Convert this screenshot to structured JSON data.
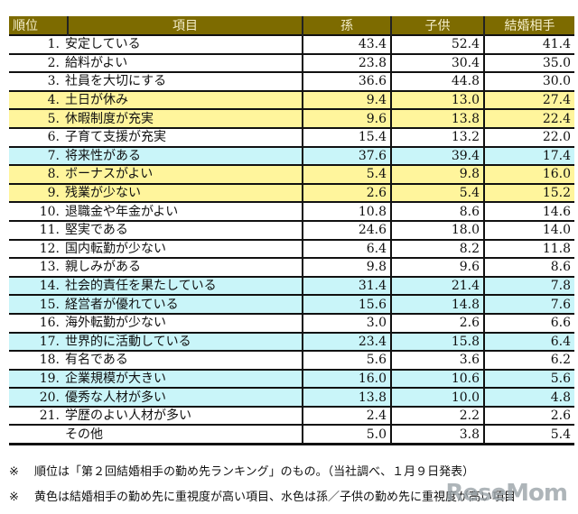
{
  "table": {
    "headers": [
      "順位",
      "項目",
      "孫",
      "子供",
      "結婚相手"
    ],
    "rows": [
      {
        "rank": "1.",
        "item": "安定している",
        "grandchild": "43.4",
        "child": "52.4",
        "spouse": "41.4",
        "highlight": "none"
      },
      {
        "rank": "2.",
        "item": "給料がよい",
        "grandchild": "23.8",
        "child": "30.4",
        "spouse": "35.0",
        "highlight": "none"
      },
      {
        "rank": "3.",
        "item": "社員を大切にする",
        "grandchild": "36.6",
        "child": "44.8",
        "spouse": "30.0",
        "highlight": "none"
      },
      {
        "rank": "4.",
        "item": "土日が休み",
        "grandchild": "9.4",
        "child": "13.0",
        "spouse": "27.4",
        "highlight": "yellow"
      },
      {
        "rank": "5.",
        "item": "休暇制度が充実",
        "grandchild": "9.6",
        "child": "13.8",
        "spouse": "22.4",
        "highlight": "yellow"
      },
      {
        "rank": "6.",
        "item": "子育て支援が充実",
        "grandchild": "15.4",
        "child": "13.2",
        "spouse": "22.0",
        "highlight": "none"
      },
      {
        "rank": "7.",
        "item": "将来性がある",
        "grandchild": "37.6",
        "child": "39.4",
        "spouse": "17.4",
        "highlight": "cyan"
      },
      {
        "rank": "8.",
        "item": "ボーナスがよい",
        "grandchild": "5.4",
        "child": "9.8",
        "spouse": "16.0",
        "highlight": "yellow"
      },
      {
        "rank": "9.",
        "item": "残業が少ない",
        "grandchild": "2.6",
        "child": "5.4",
        "spouse": "15.2",
        "highlight": "yellow"
      },
      {
        "rank": "10.",
        "item": "退職金や年金がよい",
        "grandchild": "10.8",
        "child": "8.6",
        "spouse": "14.6",
        "highlight": "none"
      },
      {
        "rank": "11.",
        "item": "堅実である",
        "grandchild": "24.6",
        "child": "18.0",
        "spouse": "14.0",
        "highlight": "none"
      },
      {
        "rank": "12.",
        "item": "国内転勤が少ない",
        "grandchild": "6.4",
        "child": "8.2",
        "spouse": "11.8",
        "highlight": "none"
      },
      {
        "rank": "13.",
        "item": "親しみがある",
        "grandchild": "9.8",
        "child": "9.6",
        "spouse": "8.6",
        "highlight": "none"
      },
      {
        "rank": "14.",
        "item": "社会的責任を果たしている",
        "grandchild": "31.4",
        "child": "21.4",
        "spouse": "7.8",
        "highlight": "cyan"
      },
      {
        "rank": "15.",
        "item": "経営者が優れている",
        "grandchild": "15.6",
        "child": "14.8",
        "spouse": "7.6",
        "highlight": "cyan"
      },
      {
        "rank": "16.",
        "item": "海外転勤が少ない",
        "grandchild": "3.0",
        "child": "2.6",
        "spouse": "6.6",
        "highlight": "none"
      },
      {
        "rank": "17.",
        "item": "世界的に活動している",
        "grandchild": "23.4",
        "child": "15.8",
        "spouse": "6.4",
        "highlight": "cyan"
      },
      {
        "rank": "18.",
        "item": "有名である",
        "grandchild": "5.6",
        "child": "3.6",
        "spouse": "6.2",
        "highlight": "none"
      },
      {
        "rank": "19.",
        "item": "企業規模が大きい",
        "grandchild": "16.0",
        "child": "10.6",
        "spouse": "5.6",
        "highlight": "cyan"
      },
      {
        "rank": "20.",
        "item": "優秀な人材が多い",
        "grandchild": "13.8",
        "child": "10.0",
        "spouse": "4.8",
        "highlight": "cyan"
      },
      {
        "rank": "21.",
        "item": "学歴のよい人材が多い",
        "grandchild": "2.4",
        "child": "2.2",
        "spouse": "2.6",
        "highlight": "none"
      },
      {
        "rank": "",
        "item": "その他",
        "grandchild": "5.0",
        "child": "3.8",
        "spouse": "5.4",
        "highlight": "none"
      }
    ]
  },
  "notes": [
    {
      "mark": "※",
      "text": "順位は「第２回結婚相手の勤め先ランキング」のもの。（当社調べ、１月９日発表）"
    },
    {
      "mark": "※",
      "text": "黄色は結婚相手の勤め先に重視度が高い項目、水色は孫／子供の勤め先に重視度が高い項目"
    }
  ],
  "watermark": "ReseMom",
  "colors": {
    "header": "#7d6b00",
    "yellow": "#fff59c",
    "cyan": "#c9f5f9"
  }
}
